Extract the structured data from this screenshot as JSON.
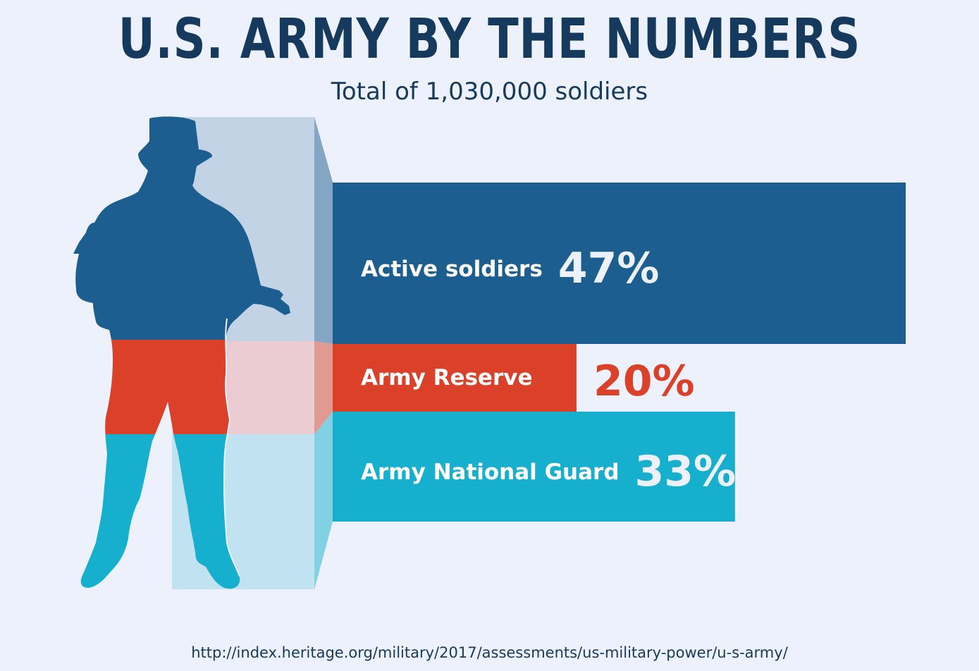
{
  "title": "U.S. ARMY BY THE NUMBERS",
  "subtitle": "Total of 1,030,000 soldiers",
  "source": "http://index.heritage.org/military/2017/assessments/us-military-power/u-s-army/",
  "chart_data": {
    "type": "bar",
    "orientation": "horizontal",
    "categories": [
      "Active soldiers",
      "Army Reserve",
      "Army National Guard"
    ],
    "values": [
      47,
      20,
      33
    ],
    "value_labels": [
      "47%",
      "20%",
      "33%"
    ],
    "unit": "%",
    "colors": [
      "#1b5e8f",
      "#db4129",
      "#16afcd"
    ],
    "value_label_colors": [
      "#ecf1fb",
      "#db4129",
      "#ecf1fb"
    ],
    "grid": false,
    "legend": "none"
  },
  "illustration": {
    "icon": "soldier-silhouette-icon",
    "fill_colors": [
      "#1b5e8f",
      "#db4129",
      "#16afcd"
    ]
  }
}
